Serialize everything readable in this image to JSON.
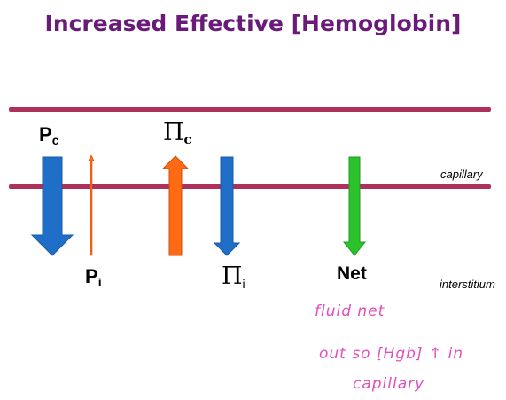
{
  "title": "Increased Effective [Hemoglobin]",
  "labels": {
    "pc_main": "P",
    "pc_sub": "c",
    "pi_main": "P",
    "pi_sub": "i",
    "pic_main": "Π",
    "pic_sub": "c",
    "pii_main": "Π",
    "pii_sub": "i",
    "net": "Net",
    "capillary": "capillary",
    "interstitium": "interstitium"
  },
  "handwritten_note": {
    "line1": "fluid net",
    "line2": "out so [Hgb] ↑ in",
    "line3": "capillary"
  },
  "colors": {
    "title": "#6a1b7a",
    "membrane": "#b0305c",
    "blue_arrow": "#1f6fc9",
    "orange_arrow": "#ff6a13",
    "green_arrow": "#2cc22c",
    "ink": "#e14fbf"
  }
}
